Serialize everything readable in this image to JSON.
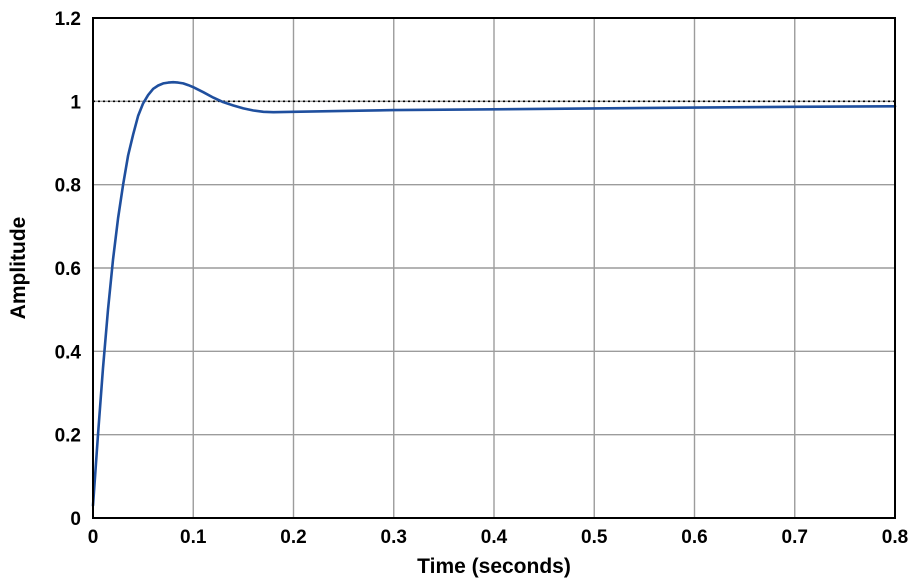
{
  "chart_data": {
    "type": "line",
    "title": "",
    "xlabel": "Time (seconds)",
    "ylabel": "Amplitude",
    "xlim": [
      0,
      0.8
    ],
    "ylim": [
      0,
      1.2
    ],
    "x_ticks": [
      "0",
      "0.1",
      "0.2",
      "0.3",
      "0.4",
      "0.5",
      "0.6",
      "0.7",
      "0.8"
    ],
    "y_ticks": [
      "0",
      "0.2",
      "0.4",
      "0.6",
      "0.8",
      "1",
      "1.2"
    ],
    "grid": true,
    "reference_line": {
      "y": 1,
      "style": "dotted",
      "color": "#000000"
    },
    "series": [
      {
        "color": "#1f4f9e",
        "x": [
          0,
          0.005,
          0.01,
          0.015,
          0.02,
          0.025,
          0.03,
          0.035,
          0.04,
          0.045,
          0.05,
          0.055,
          0.06,
          0.065,
          0.07,
          0.075,
          0.08,
          0.085,
          0.09,
          0.095,
          0.1,
          0.11,
          0.12,
          0.13,
          0.14,
          0.15,
          0.16,
          0.17,
          0.18,
          0.2,
          0.25,
          0.3,
          0.4,
          0.5,
          0.6,
          0.7,
          0.8
        ],
        "y": [
          0.03,
          0.2,
          0.36,
          0.5,
          0.62,
          0.72,
          0.8,
          0.87,
          0.92,
          0.965,
          0.995,
          1.015,
          1.03,
          1.038,
          1.043,
          1.045,
          1.046,
          1.045,
          1.043,
          1.039,
          1.034,
          1.022,
          1.009,
          0.998,
          0.99,
          0.983,
          0.978,
          0.975,
          0.974,
          0.975,
          0.977,
          0.979,
          0.981,
          0.983,
          0.985,
          0.987,
          0.988
        ]
      }
    ]
  }
}
